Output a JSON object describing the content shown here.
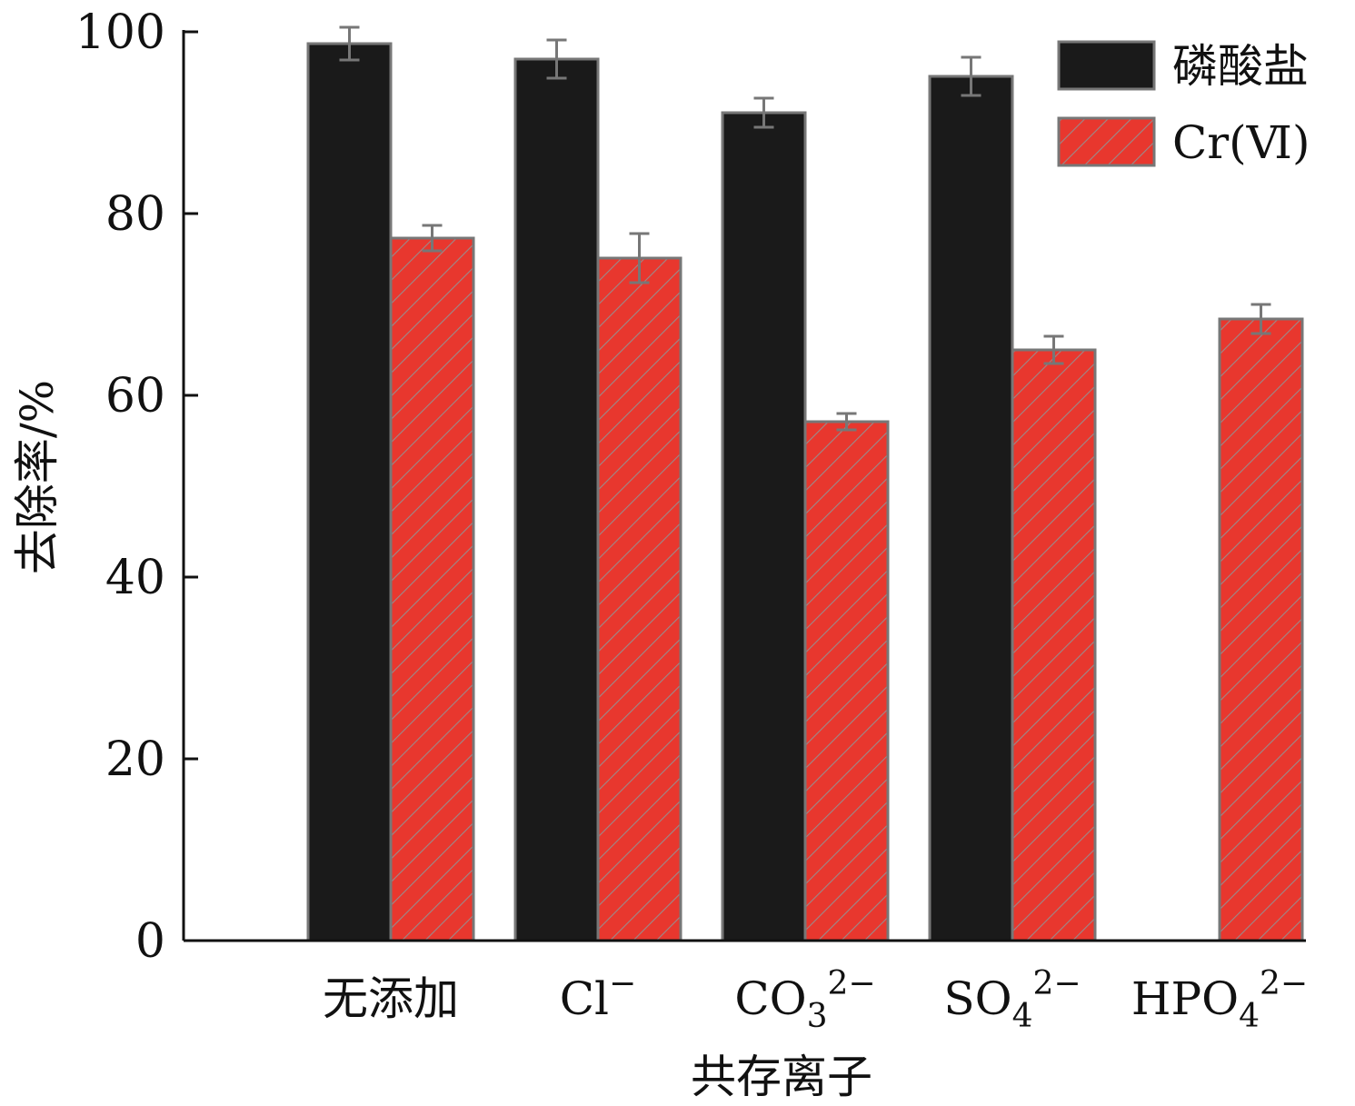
{
  "chart_data": {
    "type": "bar",
    "title": "",
    "xlabel": "共存离子",
    "ylabel": "去除率/%",
    "ylim": [
      0,
      100
    ],
    "yticks": [
      0,
      20,
      40,
      60,
      80,
      100
    ],
    "grid": false,
    "legend_position": "top-right",
    "categories": [
      {
        "base": "无添加",
        "sub": "",
        "sup": ""
      },
      {
        "base": "Cl",
        "sub": "",
        "sup": "−"
      },
      {
        "base": "CO",
        "sub": "3",
        "sup": "2−"
      },
      {
        "base": "SO",
        "sub": "4",
        "sup": "2−"
      },
      {
        "base": "HPO",
        "sub": "4",
        "sup": "2−"
      }
    ],
    "series": [
      {
        "name": "磷酸盐",
        "color": "#1a1a1a",
        "pattern": "solid",
        "values": [
          98.7,
          97.0,
          91.1,
          95.1,
          null
        ],
        "errors": [
          1.8,
          2.1,
          1.6,
          2.1,
          null
        ]
      },
      {
        "name": "Cr(Ⅵ)",
        "color": "#e8372e",
        "pattern": "hatch",
        "values": [
          77.3,
          75.1,
          57.1,
          65.0,
          68.4
        ],
        "errors": [
          1.4,
          2.7,
          0.9,
          1.5,
          1.6
        ]
      }
    ]
  }
}
